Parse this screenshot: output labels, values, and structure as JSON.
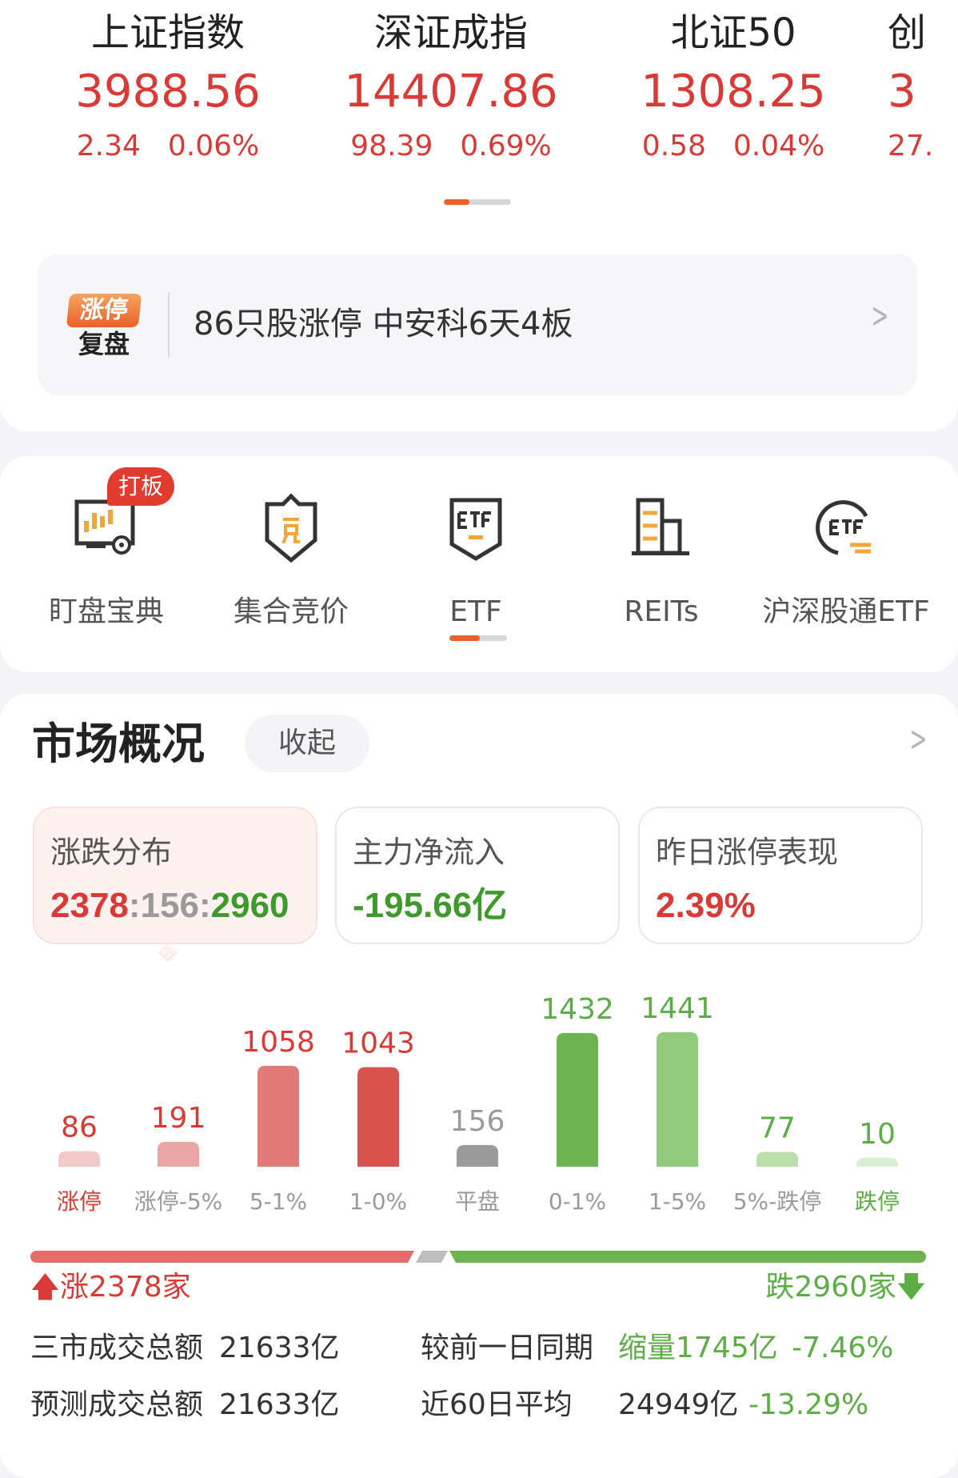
{
  "indices": [
    {
      "name": "上证指数",
      "value": "3988.56",
      "change": "2.34",
      "pct": "0.06%"
    },
    {
      "name": "深证成指",
      "value": "14407.86",
      "change": "98.39",
      "pct": "0.69%"
    },
    {
      "name": "北证50",
      "value": "1308.25",
      "change": "0.58",
      "pct": "0.04%"
    },
    {
      "name": "创",
      "value": "3",
      "change": "27.",
      "pct": ""
    }
  ],
  "banner": {
    "logo_top": "涨停",
    "logo_bottom": "复盘",
    "text": "86只股涨停 中安科6天4板"
  },
  "tools": [
    {
      "label": "盯盘宝典",
      "icon": "monitor-candlestick-icon",
      "badge": "打板"
    },
    {
      "label": "集合竞价",
      "icon": "shield-bid-icon"
    },
    {
      "label": "ETF",
      "icon": "etf-icon"
    },
    {
      "label": "REITs",
      "icon": "building-icon"
    },
    {
      "label": "沪深股通ETF",
      "icon": "etf-exchange-icon"
    }
  ],
  "market": {
    "title": "市场概况",
    "collapse": "收起",
    "boxes": [
      {
        "label": "涨跌分布",
        "up": "2378",
        "sep1": ":",
        "flat": "156",
        "sep2": ":",
        "down": "2960"
      },
      {
        "label": "主力净流入",
        "value": "-195.66亿"
      },
      {
        "label": "昨日涨停表现",
        "value": "2.39%"
      }
    ],
    "up_text": "涨2378家",
    "down_text": "跌2960家",
    "stats": [
      {
        "label": "三市成交总额",
        "value": "21633亿",
        "label2": "较前一日同期",
        "value2": "缩量1745亿",
        "pct2": "-7.46%"
      },
      {
        "label": "预测成交总额",
        "value": "21633亿",
        "label2": "近60日平均",
        "value2": "24949亿",
        "pct2": "-13.29%"
      }
    ]
  },
  "colors": {
    "up": "#d93a36",
    "down": "#3f9a2c",
    "accent": "#e8622b"
  },
  "chart_data": {
    "type": "bar",
    "categories": [
      "涨停",
      "涨停-5%",
      "5-1%",
      "1-0%",
      "平盘",
      "0-1%",
      "1-5%",
      "5%-跌停",
      "跌停"
    ],
    "values": [
      86,
      191,
      1058,
      1043,
      156,
      1432,
      1441,
      77,
      10
    ],
    "bar_colors": [
      "#f3caca",
      "#eaa5a5",
      "#e07b78",
      "#d9534f",
      "#9b9b9b",
      "#6db34f",
      "#92ca7c",
      "#badfab",
      "#d9eed2"
    ],
    "breadth": {
      "up": 2378,
      "flat": 156,
      "down": 2960
    }
  }
}
